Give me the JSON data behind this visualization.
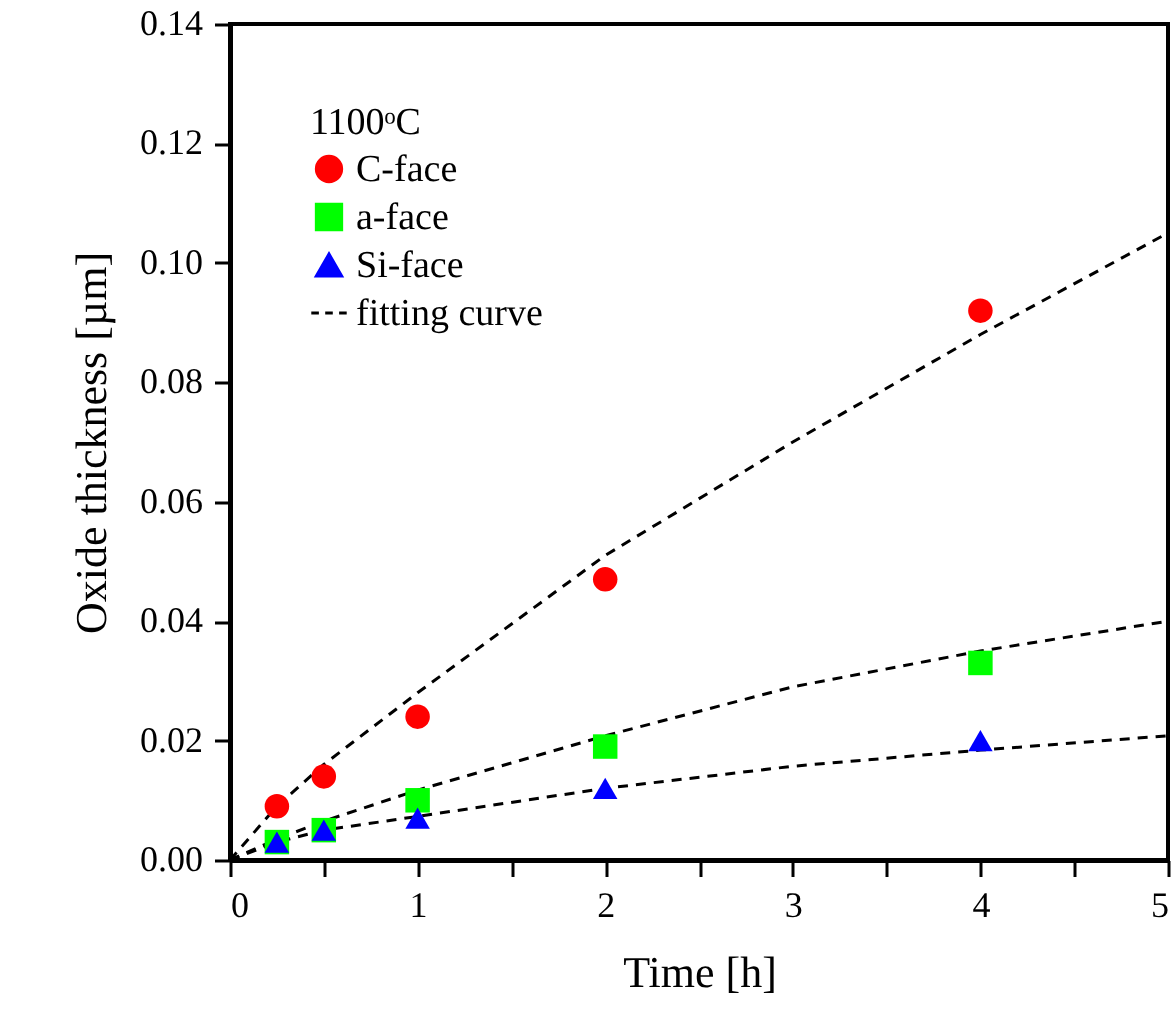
{
  "chart_data": {
    "type": "scatter",
    "xlabel": "Time [h]",
    "ylabel": "Oxide thickness [µm]",
    "legend_title": "1100ᵒC",
    "legend": "top left",
    "xlim": [
      0,
      5
    ],
    "ylim": [
      0,
      0.14
    ],
    "xticks": [
      0,
      {
        "value": 0.5,
        "label": null
      },
      1,
      {
        "value": 1.5,
        "label": null
      },
      2,
      {
        "value": 2.5,
        "label": null
      },
      3,
      {
        "value": 3.5,
        "label": null
      },
      4,
      {
        "value": 4.5,
        "label": null
      },
      5
    ],
    "yticks": [
      {
        "value": 0,
        "label": "0.00"
      },
      {
        "value": 0.02,
        "label": "0.02"
      },
      {
        "value": 0.04,
        "label": "0.04"
      },
      {
        "value": 0.06,
        "label": "0.06"
      },
      {
        "value": 0.08,
        "label": "0.08"
      },
      {
        "value": 0.1,
        "label": "0.10"
      },
      {
        "value": 0.12,
        "label": "0.12"
      },
      {
        "value": 0.14,
        "label": "0.14"
      }
    ],
    "series": [
      {
        "name": "C-face",
        "marker": "circle",
        "color": "#ff0000",
        "x": [
          0.25,
          0.5,
          1,
          2,
          4
        ],
        "values": [
          0.009,
          0.014,
          0.024,
          0.047,
          0.092
        ]
      },
      {
        "name": "a-face",
        "marker": "square",
        "color": "#00ff00",
        "x": [
          0.25,
          0.5,
          1,
          2,
          4
        ],
        "values": [
          0.003,
          0.005,
          0.01,
          0.019,
          0.033
        ]
      },
      {
        "name": "Si-face",
        "marker": "triangle",
        "color": "#0000ff",
        "x": [
          0.25,
          0.5,
          1,
          2,
          4
        ],
        "values": [
          0.003,
          0.005,
          0.007,
          0.012,
          0.02
        ]
      },
      {
        "name": "fitting curve",
        "type": "line",
        "marker": "none",
        "line_style": "dashed",
        "color": "#000000",
        "x": [
          0,
          0.25,
          0.5,
          1,
          2,
          3,
          4,
          5
        ],
        "values": [
          0,
          0.009,
          0.016,
          0.028,
          0.051,
          0.07,
          0.088,
          0.105
        ]
      },
      {
        "type": "line",
        "marker": "none",
        "line_style": "dashed",
        "color": "#000000",
        "x": [
          0,
          0.25,
          0.5,
          1,
          2,
          3,
          4,
          5
        ],
        "values": [
          0,
          0.0035,
          0.0065,
          0.0117,
          0.0208,
          0.029,
          0.035,
          0.04
        ]
      },
      {
        "type": "line",
        "marker": "none",
        "line_style": "dashed",
        "color": "#000000",
        "x": [
          0,
          0.25,
          0.5,
          1,
          2,
          3,
          4,
          5
        ],
        "values": [
          0,
          0.003,
          0.005,
          0.0073,
          0.012,
          0.0157,
          0.0184,
          0.0208
        ]
      }
    ]
  }
}
